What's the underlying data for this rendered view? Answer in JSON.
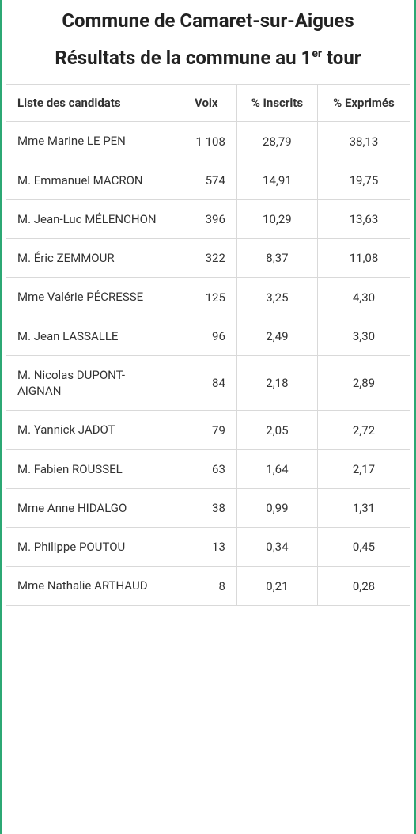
{
  "header": {
    "title": "Commune de Camaret-sur-Aigues",
    "subtitle_prefix": "Résultats de la commune au 1",
    "subtitle_super": "er",
    "subtitle_suffix": " tour"
  },
  "table": {
    "type": "table",
    "columns": [
      "Liste des candidats",
      "Voix",
      "% Inscrits",
      "% Exprimés"
    ],
    "border_color": "#d9d9d9",
    "header_fontweight": 700,
    "rows": [
      {
        "candidate": "Mme Marine LE PEN",
        "votes": "1 108",
        "pct_inscrits": "28,79",
        "pct_exprimes": "38,13"
      },
      {
        "candidate": "M. Emmanuel MACRON",
        "votes": "574",
        "pct_inscrits": "14,91",
        "pct_exprimes": "19,75"
      },
      {
        "candidate": "M. Jean-Luc MÉLENCHON",
        "votes": "396",
        "pct_inscrits": "10,29",
        "pct_exprimes": "13,63"
      },
      {
        "candidate": "M. Éric ZEMMOUR",
        "votes": "322",
        "pct_inscrits": "8,37",
        "pct_exprimes": "11,08"
      },
      {
        "candidate": "Mme Valérie PÉCRESSE",
        "votes": "125",
        "pct_inscrits": "3,25",
        "pct_exprimes": "4,30"
      },
      {
        "candidate": "M. Jean LASSALLE",
        "votes": "96",
        "pct_inscrits": "2,49",
        "pct_exprimes": "3,30"
      },
      {
        "candidate": "M. Nicolas DUPONT-AIGNAN",
        "votes": "84",
        "pct_inscrits": "2,18",
        "pct_exprimes": "2,89"
      },
      {
        "candidate": "M. Yannick JADOT",
        "votes": "79",
        "pct_inscrits": "2,05",
        "pct_exprimes": "2,72"
      },
      {
        "candidate": "M. Fabien ROUSSEL",
        "votes": "63",
        "pct_inscrits": "1,64",
        "pct_exprimes": "2,17"
      },
      {
        "candidate": "Mme Anne HIDALGO",
        "votes": "38",
        "pct_inscrits": "0,99",
        "pct_exprimes": "1,31"
      },
      {
        "candidate": "M. Philippe POUTOU",
        "votes": "13",
        "pct_inscrits": "0,34",
        "pct_exprimes": "0,45"
      },
      {
        "candidate": "Mme Nathalie ARTHAUD",
        "votes": "8",
        "pct_inscrits": "0,21",
        "pct_exprimes": "0,28"
      }
    ]
  }
}
